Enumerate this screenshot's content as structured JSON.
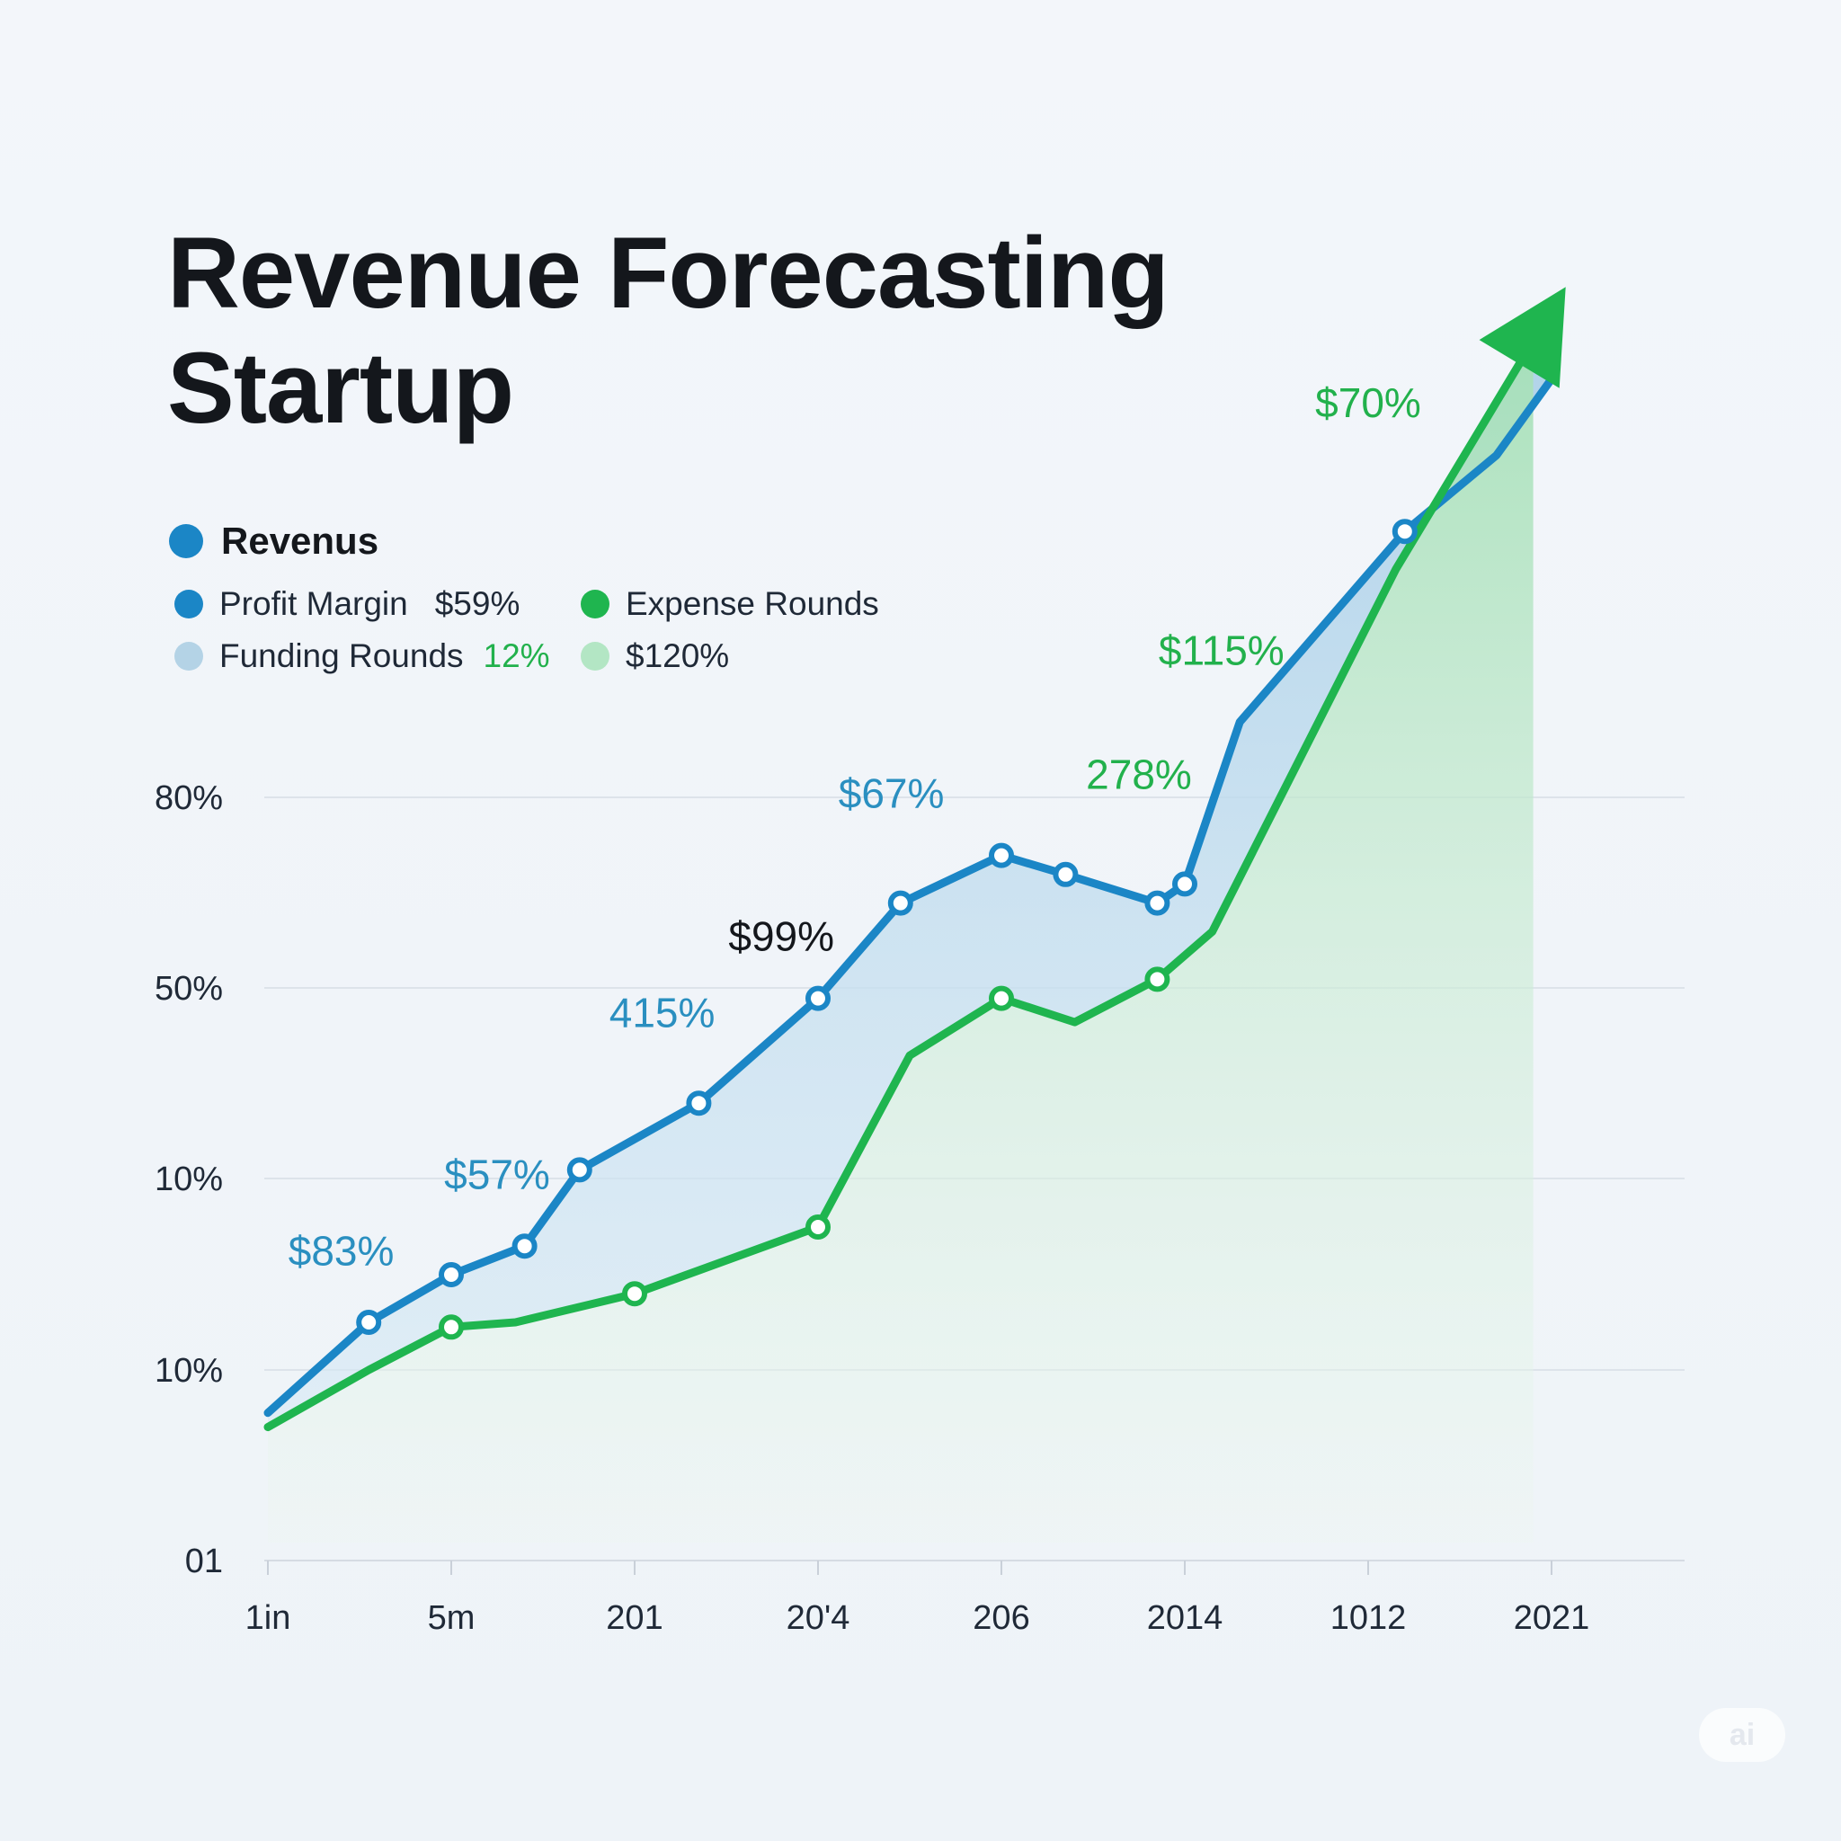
{
  "title_lines": [
    "Revenue Forecasting",
    "Startup"
  ],
  "legend": {
    "main": {
      "label": "Revenus",
      "color": "#1b86c6"
    },
    "items": [
      {
        "label": "Profit Margin",
        "value": "$59%",
        "color": "#1b86c6",
        "value_color": "#1f2937"
      },
      {
        "label": "Expense Rounds",
        "value": "",
        "color": "#1fb54f",
        "value_color": "#1f2937"
      },
      {
        "label": "Funding Rounds",
        "value": "12%",
        "color": "#b4d3e6",
        "value_color": "#22b14c"
      },
      {
        "label": "",
        "value": "$120%",
        "color": "#b3e6c4",
        "value_color": "#1f2937"
      }
    ]
  },
  "badge": "ai",
  "chart_data": {
    "type": "area",
    "x_tick_labels": [
      "1in",
      "5m",
      "201",
      "20'4",
      "206",
      "2014",
      "1012",
      "2021"
    ],
    "y_tick_labels": [
      "01",
      "10%",
      "10%",
      "50%",
      "80%"
    ],
    "grid": true,
    "series": [
      {
        "name": "Revenus",
        "color": "#1b86c6",
        "fill": "#b9d8ec",
        "x": [
          0,
          0.55,
          1,
          1.4,
          1.7,
          2.35,
          3,
          3.45,
          4,
          4.35,
          4.85,
          5.0,
          5.3,
          6.2,
          6.7,
          7.0
        ],
        "values": [
          15.5,
          25,
          30,
          33,
          41,
          48,
          59,
          69,
          74,
          72,
          69,
          71,
          88,
          108,
          116,
          124
        ],
        "markers_at": [
          1,
          2,
          3,
          4,
          5,
          6,
          7,
          8,
          9,
          10,
          11,
          13
        ]
      },
      {
        "name": "Expense Rounds",
        "color": "#1fb54f",
        "fill": "#bfe8cc",
        "x": [
          0,
          0.55,
          1,
          1.35,
          2,
          3,
          3.5,
          4,
          4.4,
          4.85,
          5.15,
          6.15,
          6.9
        ],
        "values": [
          14,
          20,
          24.5,
          25,
          28,
          35,
          53,
          59,
          56.5,
          61,
          66,
          104,
          128
        ],
        "markers_at": [
          2,
          4,
          5,
          7,
          9
        ]
      }
    ],
    "data_labels": [
      {
        "text": "$83%",
        "x": 0.4,
        "y": 31,
        "color": "#2a8fc0"
      },
      {
        "text": "$57%",
        "x": 1.25,
        "y": 39,
        "color": "#2a8fc0"
      },
      {
        "text": "415%",
        "x": 2.15,
        "y": 56,
        "color": "#2a8fc0"
      },
      {
        "text": "$99%",
        "x": 2.8,
        "y": 64,
        "color": "#14171c"
      },
      {
        "text": "$67%",
        "x": 3.4,
        "y": 79,
        "color": "#2a8fc0"
      },
      {
        "text": "278%",
        "x": 4.75,
        "y": 81,
        "color": "#22b14c"
      },
      {
        "text": "$115%",
        "x": 5.2,
        "y": 94,
        "color": "#22b14c"
      },
      {
        "text": "$70%",
        "x": 6.0,
        "y": 120,
        "color": "#22b14c"
      }
    ]
  }
}
